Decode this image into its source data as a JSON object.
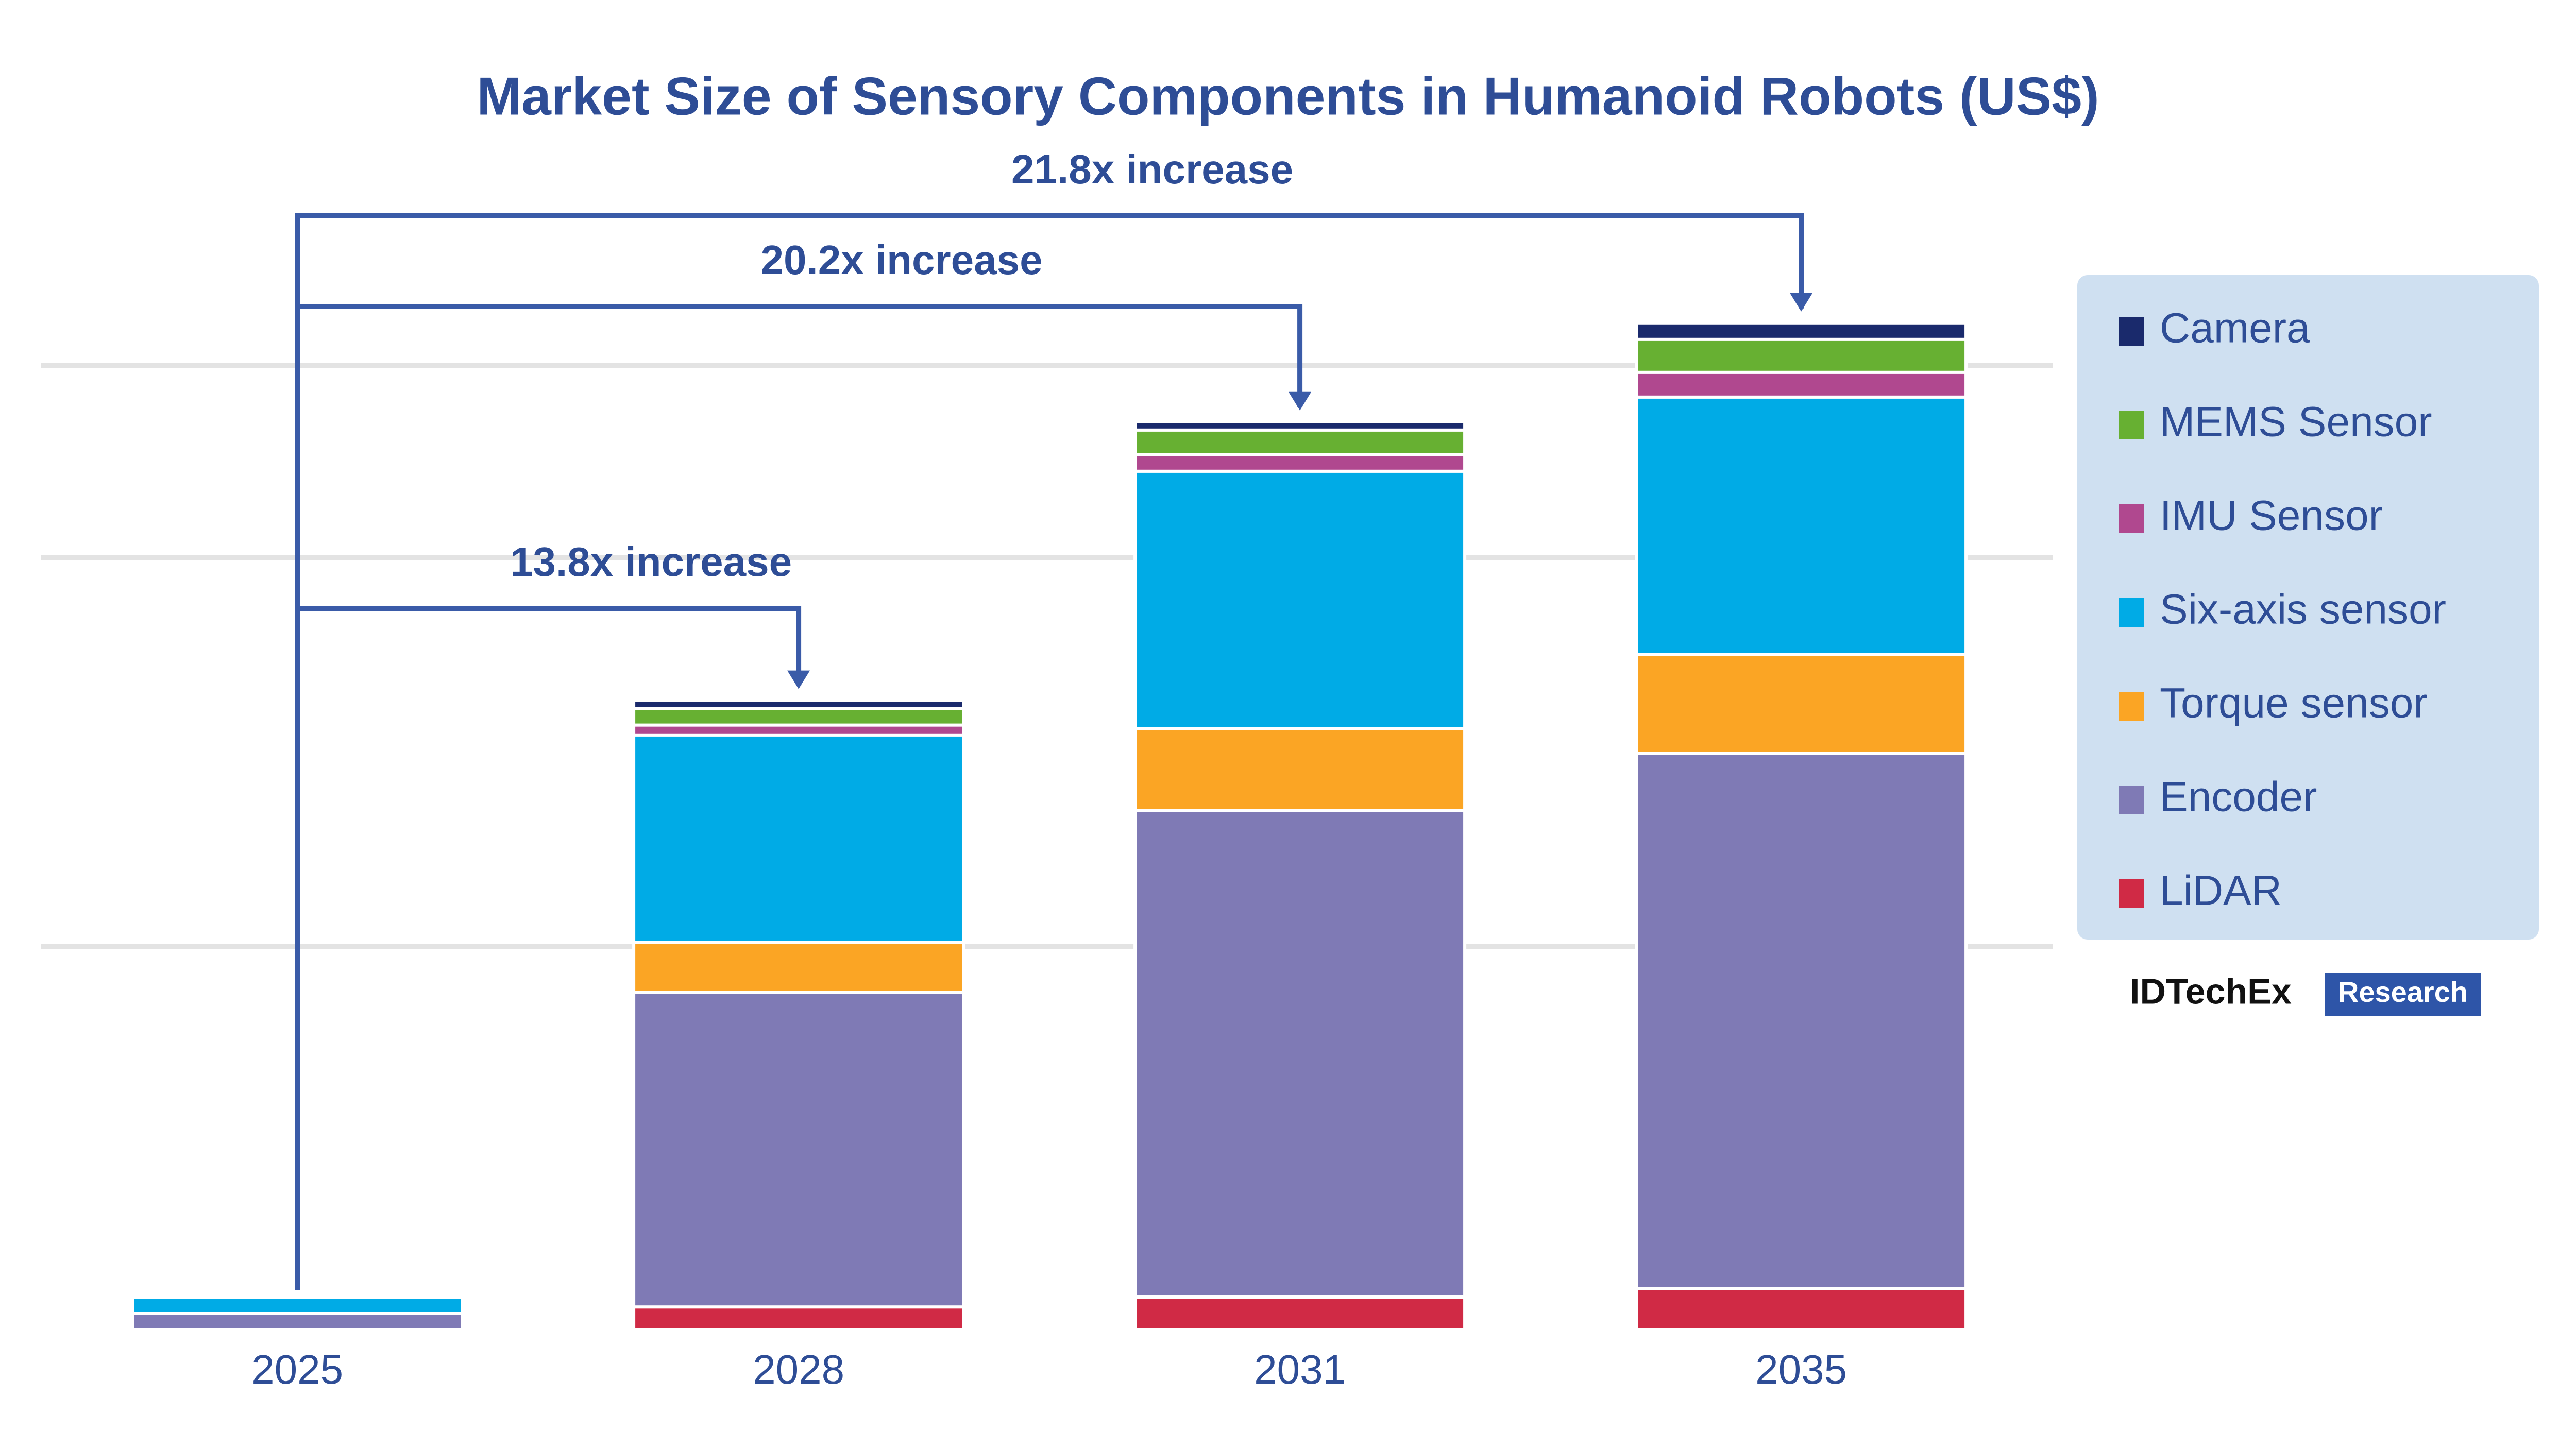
{
  "chart_data": {
    "type": "stacked-bar",
    "title": "Market Size of Sensory Components in Humanoid Robots (US$)",
    "categories": [
      "2025",
      "2028",
      "2031",
      "2035"
    ],
    "series": [
      {
        "name": "LiDAR",
        "color": "#d02a45",
        "values": [
          0,
          1.4,
          2.0,
          2.5
        ]
      },
      {
        "name": "Encoder",
        "color": "#7f7ab5",
        "values": [
          1.0,
          19.1,
          29.5,
          32.5
        ]
      },
      {
        "name": "Torque sensor",
        "color": "#fba524",
        "values": [
          0,
          3.0,
          5.0,
          6.0
        ]
      },
      {
        "name": "Six-axis sensor",
        "color": "#00abe6",
        "values": [
          1.0,
          12.6,
          15.6,
          15.6
        ]
      },
      {
        "name": "IMU Sensor",
        "color": "#b0488f",
        "values": [
          0,
          0.6,
          1.0,
          1.5
        ]
      },
      {
        "name": "MEMS Sensor",
        "color": "#67b032",
        "values": [
          0,
          1.0,
          1.5,
          2.0
        ]
      },
      {
        "name": "Camera",
        "color": "#1a2a6c",
        "values": [
          0,
          0.5,
          0.5,
          1.0
        ]
      }
    ],
    "ylim": [
      0,
      70
    ],
    "annotations": [
      "13.8x increase",
      "20.2x increase",
      "21.8x increase"
    ],
    "source": "IDTechEx",
    "source_tag": "Research"
  }
}
